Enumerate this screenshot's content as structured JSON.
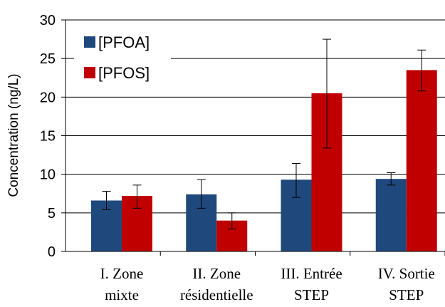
{
  "chart_data": {
    "type": "bar",
    "title": "",
    "xlabel": "",
    "ylabel": "Concentration (ng/L)",
    "ylim": [
      0,
      30
    ],
    "yticks": [
      0,
      5,
      10,
      15,
      20,
      25,
      30
    ],
    "grid": true,
    "legend_position": "top-left",
    "categories": [
      [
        "I. Zone",
        "mixte"
      ],
      [
        "II. Zone",
        "résidentielle"
      ],
      [
        "III. Entrée",
        "STEP"
      ],
      [
        "IV. Sortie",
        "STEP"
      ]
    ],
    "series": [
      {
        "name": "[PFOA]",
        "color": "#1f497d",
        "values": [
          6.6,
          7.4,
          9.3,
          9.4
        ],
        "error_low": [
          5.4,
          5.6,
          7.0,
          8.6
        ],
        "error_high": [
          7.8,
          9.3,
          11.4,
          10.2
        ]
      },
      {
        "name": "[PFOS]",
        "color": "#c00000",
        "values": [
          7.2,
          4.0,
          20.5,
          23.5
        ],
        "error_low": [
          5.6,
          2.9,
          13.4,
          20.8
        ],
        "error_high": [
          8.6,
          5.0,
          27.5,
          26.1
        ]
      }
    ]
  }
}
